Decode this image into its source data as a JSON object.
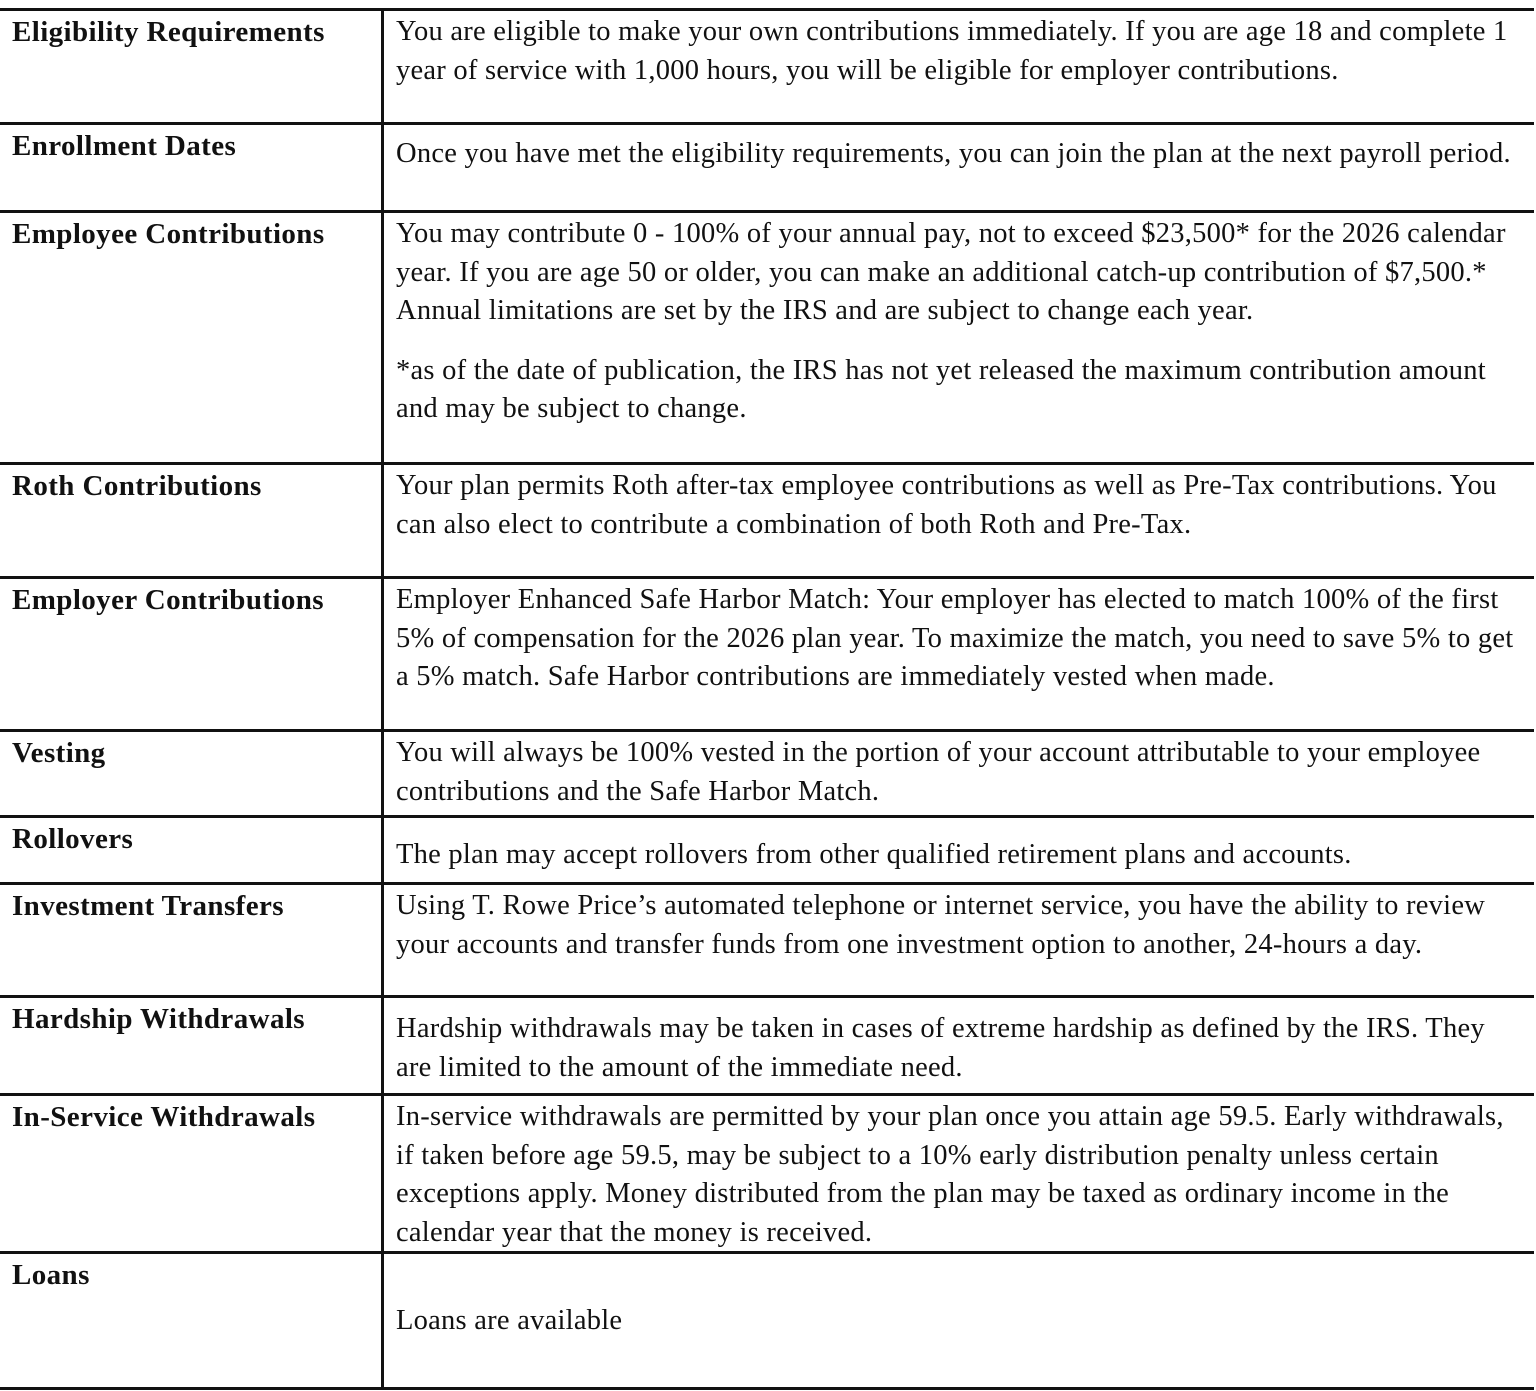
{
  "rows": [
    {
      "label": "Eligibility Requirements",
      "text": [
        "You are eligible to make your own contributions immediately. If you are age 18 and complete 1 year of service with 1,000 hours, you will be eligible for employer contributions."
      ]
    },
    {
      "label": "Enrollment Dates",
      "text": [
        "Once you have met the eligibility requirements, you can join the plan at the next payroll period."
      ]
    },
    {
      "label": "Employee Contributions",
      "text": [
        "You may contribute 0 - 100% of your annual pay, not to exceed $23,500* for the 2026 calendar year. If you are age 50 or older, you can make an additional catch-up contribution of $7,500.* Annual limitations are set by the IRS and are subject to change each year.",
        "*as of the date of publication, the IRS has not yet released the maximum contribution amount and may be subject to change."
      ]
    },
    {
      "label": "Roth Contributions",
      "text": [
        "Your plan permits Roth after-tax employee contributions as well as Pre-Tax contributions. You can also elect to contribute a combination of both Roth and Pre-Tax."
      ]
    },
    {
      "label": "Employer Contributions",
      "text": [
        "Employer Enhanced Safe Harbor Match: Your employer has elected to match 100% of the first 5% of compensation for the 2026 plan year. To maximize the match, you need to save 5% to get a 5% match. Safe Harbor contributions are immediately vested when made."
      ]
    },
    {
      "label": "Vesting",
      "text": [
        "You will always be 100% vested in the portion of your account attributable to your employee contributions and the Safe Harbor Match."
      ]
    },
    {
      "label": "Rollovers",
      "text": [
        "The plan may accept rollovers from other qualified retirement plans and accounts."
      ]
    },
    {
      "label": "Investment Transfers",
      "text": [
        "Using T. Rowe Price’s automated telephone or internet service, you have the ability to review your accounts and transfer funds from one investment option to another, 24-hours a day."
      ]
    },
    {
      "label": "Hardship Withdrawals",
      "text": [
        "Hardship withdrawals may be taken in cases of extreme hardship as defined by the IRS. They are limited to the amount of the immediate need."
      ]
    },
    {
      "label": "In-Service Withdrawals",
      "text": [
        "In-service withdrawals are permitted by your plan once you attain age 59.5. Early withdrawals, if taken before age 59.5, may be subject to a 10% early distribution penalty unless certain exceptions apply. Money distributed from the plan may be taxed as ordinary income in the calendar year that the money is received."
      ]
    },
    {
      "label": "Loans",
      "text": [
        "Loans are available"
      ]
    }
  ]
}
